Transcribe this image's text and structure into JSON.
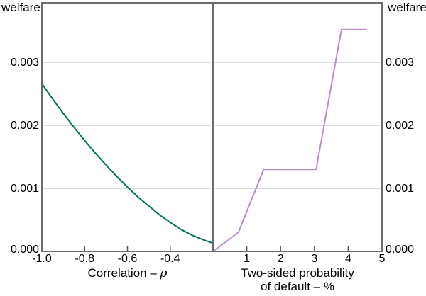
{
  "figure": {
    "welfare_label_left": "welfare",
    "welfare_label_right": "welfare"
  },
  "colors": {
    "correlation_line": "#00705c",
    "default_prob_line": "#b78fc5",
    "axis": "#6b6b6b",
    "tick": "#555555",
    "gridline": "#dcdcdc",
    "text": "#000000",
    "background": "#ffffff"
  },
  "chart_data": [
    {
      "type": "line",
      "panel": "left",
      "ylabel": "welfare",
      "ytick_side": "left",
      "xlabel_lines": [
        [
          {
            "text": "Correlation – "
          },
          {
            "text": "ρ",
            "italic": true
          }
        ]
      ],
      "xlim": [
        -1.0,
        -0.2
      ],
      "ylim": [
        0,
        0.004
      ],
      "grid": true,
      "grid_values": [
        0.001,
        0.002,
        0.003
      ],
      "xticks": [
        {
          "value": -1.0,
          "label": "-1.0",
          "tick": false
        },
        {
          "value": -0.8,
          "label": "-0.8",
          "tick": true
        },
        {
          "value": -0.6,
          "label": "-0.6",
          "tick": true
        },
        {
          "value": -0.4,
          "label": "-0.4",
          "tick": true
        }
      ],
      "yticks": [
        {
          "value": 0,
          "label": "0.000"
        },
        {
          "value": 0.001,
          "label": "0.001"
        },
        {
          "value": 0.002,
          "label": "0.002"
        },
        {
          "value": 0.003,
          "label": "0.003"
        }
      ],
      "series": [
        {
          "name": "welfare-vs-correlation",
          "color": "#00705c",
          "points": [
            [
              -1.0,
              0.00266
            ],
            [
              -0.95,
              0.00242
            ],
            [
              -0.9,
              0.00219
            ],
            [
              -0.85,
              0.00197
            ],
            [
              -0.8,
              0.00176
            ],
            [
              -0.75,
              0.00156
            ],
            [
              -0.7,
              0.00137
            ],
            [
              -0.65,
              0.00119
            ],
            [
              -0.6,
              0.00102
            ],
            [
              -0.55,
              0.00086
            ],
            [
              -0.5,
              0.00072
            ],
            [
              -0.45,
              0.00058
            ],
            [
              -0.4,
              0.00046
            ],
            [
              -0.35,
              0.00035
            ],
            [
              -0.3,
              0.00026
            ],
            [
              -0.25,
              0.00019
            ],
            [
              -0.2,
              0.00013
            ]
          ]
        }
      ]
    },
    {
      "type": "line",
      "panel": "right",
      "ylabel": "welfare",
      "ytick_side": "right",
      "xlabel_lines": [
        [
          {
            "text": "Two-sided probability"
          }
        ],
        [
          {
            "text": "of default – %"
          }
        ]
      ],
      "xlim": [
        0,
        5
      ],
      "ylim": [
        0,
        0.004
      ],
      "grid": true,
      "grid_values": [
        0.001,
        0.002,
        0.003
      ],
      "xticks": [
        {
          "value": 1,
          "label": "1",
          "tick": true
        },
        {
          "value": 2,
          "label": "2",
          "tick": true
        },
        {
          "value": 3,
          "label": "3",
          "tick": true
        },
        {
          "value": 4,
          "label": "4",
          "tick": true
        },
        {
          "value": 5,
          "label": "5",
          "tick": false
        }
      ],
      "yticks": [
        {
          "value": 0,
          "label": "0.000"
        },
        {
          "value": 0.001,
          "label": "0.001"
        },
        {
          "value": 0.002,
          "label": "0.002"
        },
        {
          "value": 0.003,
          "label": "0.003"
        }
      ],
      "series": [
        {
          "name": "welfare-vs-default-probability",
          "color": "#b78fc5",
          "points": [
            [
              0,
              0
            ],
            [
              0.75,
              0.0003
            ],
            [
              1.5,
              0.0013
            ],
            [
              3.05,
              0.0013
            ],
            [
              3.8,
              0.00352
            ],
            [
              4.55,
              0.00352
            ]
          ]
        }
      ]
    }
  ]
}
